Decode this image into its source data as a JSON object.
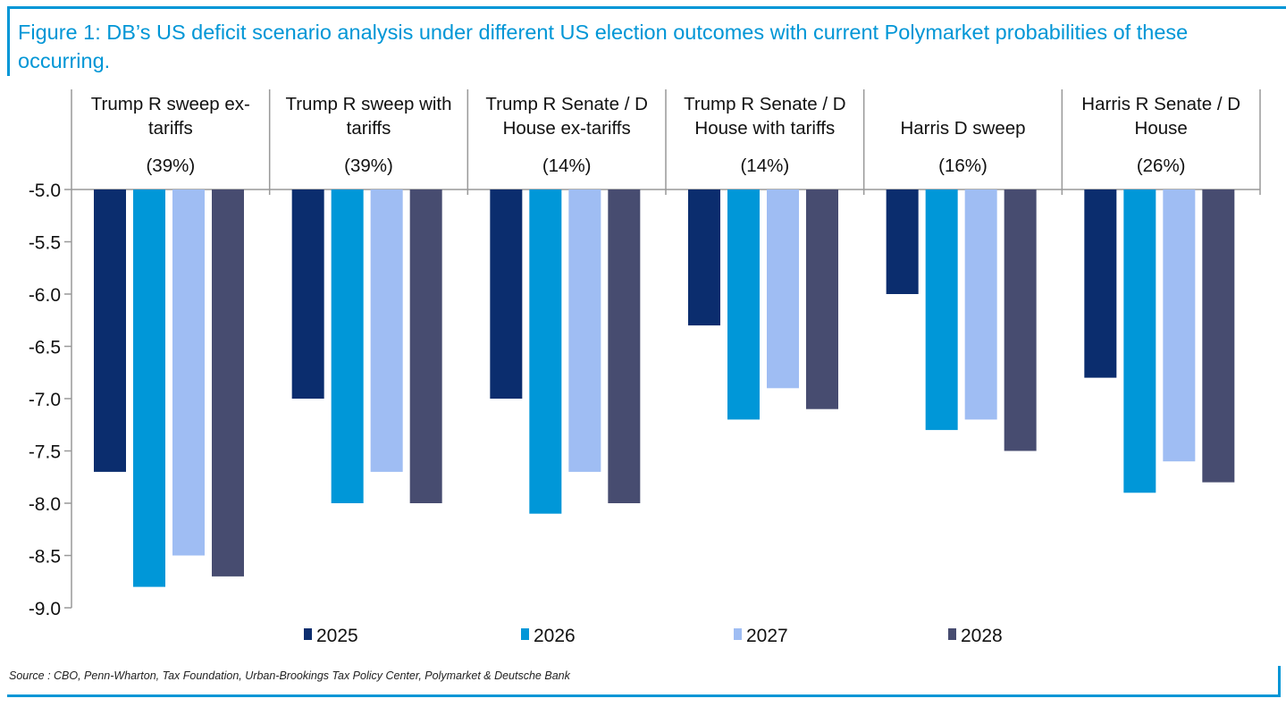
{
  "chart_data": {
    "type": "bar",
    "title": "Figure 1: DB’s US deficit scenario analysis under different US election outcomes with current Polymarket probabilities of these occurring.",
    "categories": [
      {
        "label": [
          "Trump R sweep ex-",
          "tariffs"
        ],
        "prob": "(39%)"
      },
      {
        "label": [
          "Trump R sweep with",
          "tariffs"
        ],
        "prob": "(39%)"
      },
      {
        "label": [
          "Trump R Senate / D",
          "House ex-tariffs"
        ],
        "prob": "(14%)"
      },
      {
        "label": [
          "Trump R Senate / D",
          "House with tariffs"
        ],
        "prob": "(14%)"
      },
      {
        "label": [
          "Harris D sweep"
        ],
        "prob": "(16%)"
      },
      {
        "label": [
          "Harris R Senate / D",
          "House"
        ],
        "prob": "(26%)"
      }
    ],
    "series": [
      {
        "name": "2025",
        "color": "#0b2d6e",
        "values": [
          -7.7,
          -7.0,
          -7.0,
          -6.3,
          -6.0,
          -6.8
        ]
      },
      {
        "name": "2026",
        "color": "#0097d8",
        "values": [
          -8.8,
          -8.0,
          -8.1,
          -7.2,
          -7.3,
          -7.9
        ]
      },
      {
        "name": "2027",
        "color": "#9fbdf3",
        "values": [
          -8.5,
          -7.7,
          -7.7,
          -6.9,
          -7.2,
          -7.6
        ]
      },
      {
        "name": "2028",
        "color": "#474c70",
        "values": [
          -8.7,
          -8.0,
          -8.0,
          -7.1,
          -7.5,
          -7.8
        ]
      }
    ],
    "yticks": [
      "-5.0",
      "-5.5",
      "-6.0",
      "-6.5",
      "-7.0",
      "-7.5",
      "-8.0",
      "-8.5",
      "-9.0"
    ],
    "ylim": [
      -9.0,
      -5.0
    ],
    "xlabel": "",
    "ylabel": "",
    "legend": "bottom",
    "grid": false
  },
  "source": "Source : CBO, Penn-Wharton, Tax Foundation, Urban-Brookings Tax Policy Center, Polymarket & Deutsche Bank"
}
